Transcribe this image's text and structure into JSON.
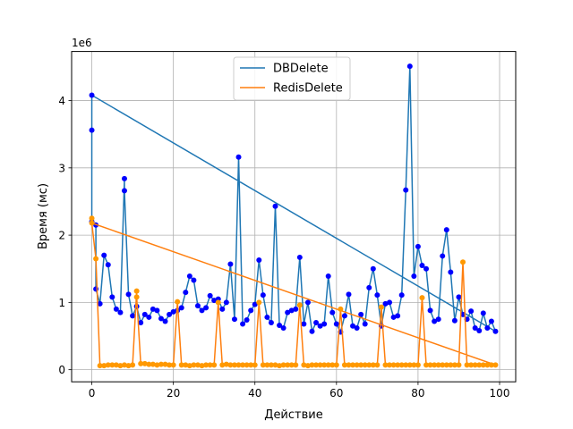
{
  "chart_data": {
    "type": "line",
    "title": "",
    "xlabel": "Действие",
    "ylabel": "Время (мс)",
    "offset_label": "1e6",
    "xlim": [
      -4.95,
      103.95
    ],
    "ylim": [
      -180000,
      4730000
    ],
    "xticks": [
      0,
      20,
      40,
      60,
      80,
      100
    ],
    "yticks": [
      0,
      1000000,
      2000000,
      3000000,
      4000000
    ],
    "ytick_labels": [
      "0",
      "1",
      "2",
      "3",
      "4"
    ],
    "grid": true,
    "legend_position": "upper-center",
    "series": [
      {
        "name": "DBDelete",
        "color": "#1f77b4",
        "marker_color": "#0000ff",
        "x": [
          0,
          0,
          0,
          1,
          1,
          2,
          3,
          4,
          5,
          6,
          7,
          8,
          8,
          9,
          10,
          11,
          12,
          13,
          14,
          15,
          16,
          17,
          18,
          19,
          20,
          21,
          22,
          23,
          24,
          25,
          26,
          27,
          28,
          29,
          30,
          31,
          32,
          33,
          34,
          35,
          36,
          37,
          38,
          39,
          40,
          41,
          42,
          43,
          44,
          45,
          46,
          47,
          48,
          49,
          50,
          51,
          52,
          53,
          54,
          55,
          56,
          57,
          58,
          59,
          60,
          61,
          62,
          63,
          64,
          65,
          66,
          67,
          68,
          69,
          70,
          71,
          72,
          73,
          74,
          75,
          76,
          77,
          78,
          79,
          80,
          81,
          82,
          83,
          84,
          85,
          86,
          87,
          88,
          89,
          90,
          91,
          92,
          93,
          94,
          95,
          96,
          97,
          98,
          99
        ],
        "values": [
          4080000,
          3560000,
          2200000,
          2150000,
          1200000,
          980000,
          1700000,
          1560000,
          1080000,
          900000,
          850000,
          2840000,
          2660000,
          1120000,
          800000,
          940000,
          700000,
          820000,
          780000,
          900000,
          880000,
          760000,
          720000,
          820000,
          860000,
          880000,
          920000,
          1150000,
          1390000,
          1330000,
          950000,
          880000,
          920000,
          1100000,
          1030000,
          1050000,
          900000,
          1000000,
          1570000,
          750000,
          3160000,
          680000,
          740000,
          880000,
          970000,
          1630000,
          1110000,
          780000,
          700000,
          2430000,
          660000,
          620000,
          850000,
          880000,
          900000,
          1670000,
          680000,
          1000000,
          570000,
          700000,
          650000,
          680000,
          1390000,
          850000,
          680000,
          560000,
          800000,
          1120000,
          650000,
          620000,
          820000,
          680000,
          1220000,
          1500000,
          1110000,
          650000,
          980000,
          1000000,
          780000,
          800000,
          1110000,
          2670000,
          4510000,
          1390000,
          1830000,
          1550000,
          1500000,
          880000,
          720000,
          750000,
          1690000,
          2080000,
          1450000,
          730000,
          1080000,
          820000,
          750000,
          870000,
          620000,
          580000,
          840000,
          620000,
          720000,
          570000
        ],
        "return_to": [
          0,
          4080000
        ]
      },
      {
        "name": "RedisDelete",
        "color": "#ff7f0e",
        "marker_color": "#ff9900",
        "x": [
          0,
          0,
          1,
          2,
          3,
          4,
          5,
          6,
          7,
          8,
          9,
          10,
          11,
          11,
          12,
          13,
          14,
          15,
          16,
          17,
          18,
          19,
          20,
          21,
          22,
          23,
          24,
          25,
          26,
          27,
          28,
          29,
          30,
          31,
          32,
          33,
          34,
          35,
          36,
          37,
          38,
          39,
          40,
          41,
          42,
          43,
          44,
          45,
          46,
          47,
          48,
          49,
          50,
          51,
          52,
          53,
          54,
          55,
          56,
          57,
          58,
          59,
          60,
          61,
          62,
          63,
          64,
          65,
          66,
          67,
          68,
          69,
          70,
          71,
          72,
          73,
          74,
          75,
          76,
          77,
          78,
          79,
          80,
          81,
          82,
          83,
          84,
          85,
          86,
          87,
          88,
          89,
          90,
          91,
          92,
          93,
          94,
          95,
          96,
          97,
          98,
          99
        ],
        "values": [
          2250000,
          2180000,
          1650000,
          60000,
          60000,
          70000,
          70000,
          70000,
          60000,
          70000,
          60000,
          70000,
          1170000,
          1080000,
          90000,
          90000,
          80000,
          80000,
          70000,
          80000,
          80000,
          70000,
          70000,
          1010000,
          70000,
          70000,
          60000,
          70000,
          70000,
          60000,
          70000,
          70000,
          70000,
          1000000,
          70000,
          80000,
          70000,
          70000,
          70000,
          70000,
          70000,
          70000,
          70000,
          1000000,
          70000,
          70000,
          70000,
          70000,
          60000,
          70000,
          70000,
          70000,
          70000,
          960000,
          70000,
          60000,
          70000,
          70000,
          70000,
          70000,
          70000,
          70000,
          70000,
          900000,
          70000,
          70000,
          70000,
          70000,
          70000,
          70000,
          70000,
          70000,
          70000,
          930000,
          70000,
          70000,
          70000,
          70000,
          70000,
          70000,
          70000,
          70000,
          70000,
          1070000,
          70000,
          70000,
          70000,
          70000,
          70000,
          70000,
          70000,
          70000,
          70000,
          1600000,
          70000,
          70000,
          70000,
          70000,
          70000,
          70000,
          70000,
          70000
        ],
        "return_to": [
          0,
          2180000
        ]
      }
    ]
  }
}
